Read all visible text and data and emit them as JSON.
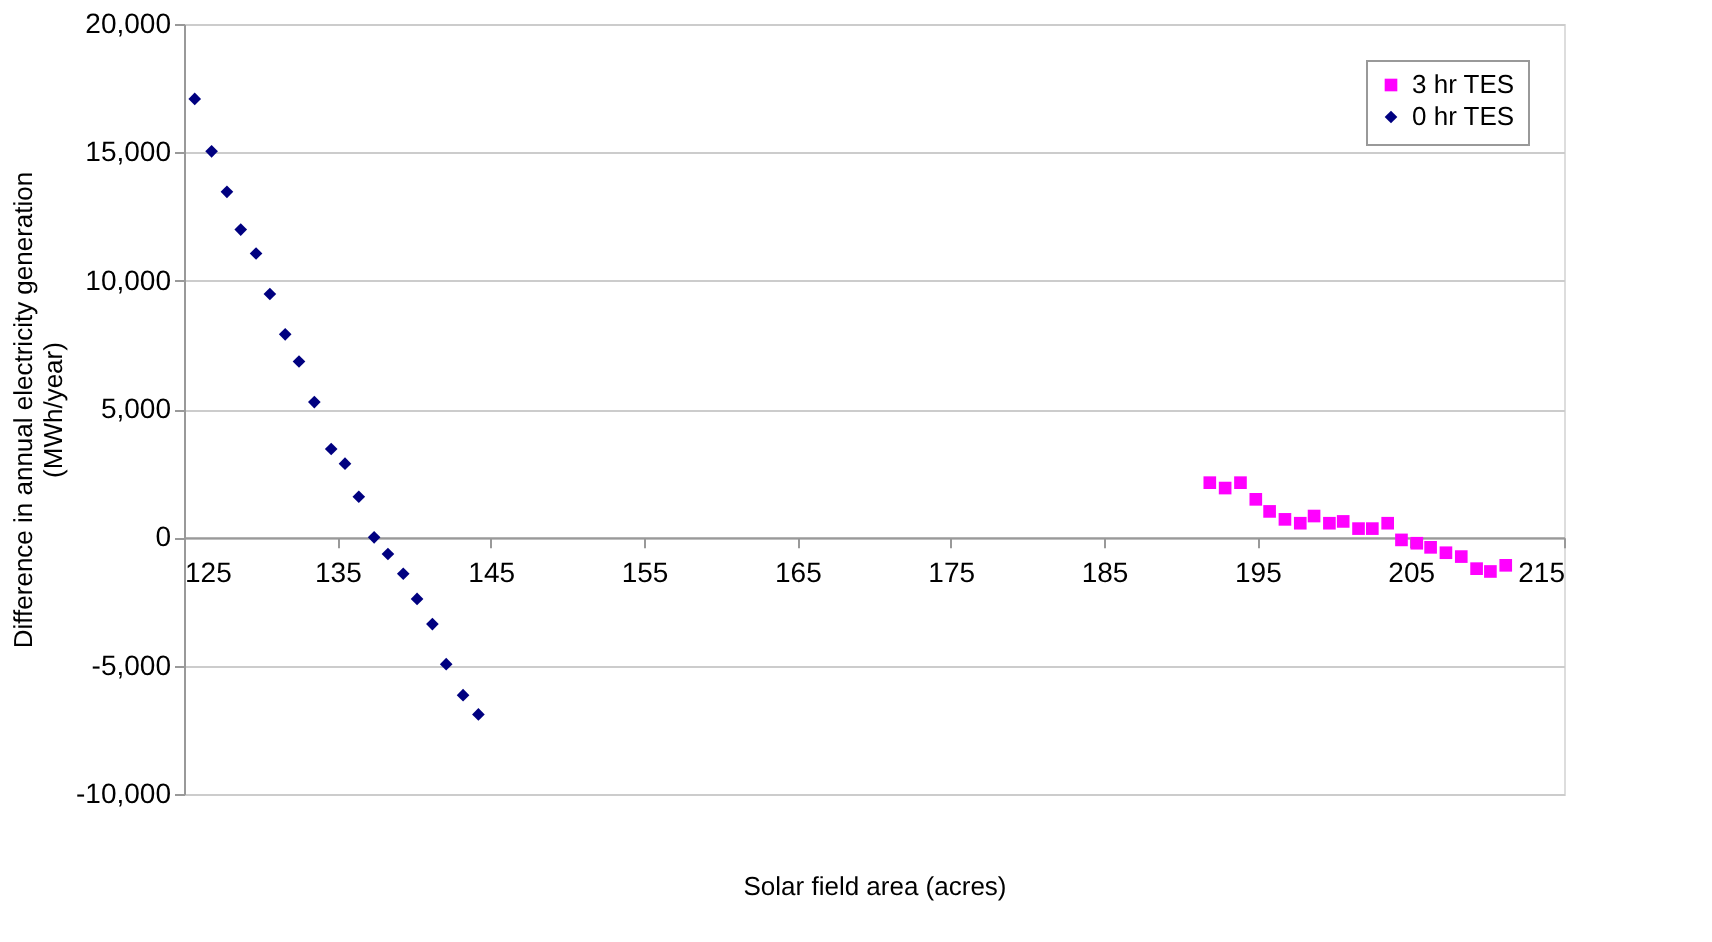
{
  "chart_data": {
    "type": "scatter",
    "xlabel": "Solar field area (acres)",
    "ylabel": "Difference in annual electricity generation (MWh/year)",
    "xlim": [
      125,
      215
    ],
    "xticks": [
      125,
      135,
      145,
      155,
      165,
      175,
      185,
      195,
      205,
      215
    ],
    "ylim": [
      -10000,
      20000
    ],
    "yticks": [
      {
        "value": -10000,
        "label": "-10,000"
      },
      {
        "value": -5000,
        "label": "-5,000"
      },
      0,
      {
        "value": 5000,
        "label": "5,000"
      },
      {
        "value": 10000,
        "label": "10,000"
      },
      {
        "value": 15000,
        "label": "15,000"
      },
      {
        "value": 20000,
        "label": "20,000"
      }
    ],
    "grid": "y",
    "legend": "top right",
    "series": [
      {
        "name": "3 hr TES",
        "color": "#ff00ff",
        "marker": "square",
        "x": [
          191.9,
          192.9,
          193.9,
          194.9,
          195.8,
          196.8,
          197.8,
          198.7,
          199.7,
          200.6,
          201.6,
          202.5,
          203.5,
          204.4,
          205.4,
          206.3,
          207.3,
          208.3,
          209.3,
          210.2,
          211.2
        ],
        "values": [
          2130,
          1920,
          2130,
          1480,
          1010,
          700,
          550,
          830,
          550,
          620,
          340,
          340,
          550,
          -100,
          -230,
          -390,
          -600,
          -750,
          -1220,
          -1330,
          -1090
        ]
      },
      {
        "name": "0 hr TES",
        "color": "#000080",
        "marker": "diamond",
        "x": [
          125.7,
          126.8,
          127.8,
          128.7,
          129.7,
          130.6,
          131.6,
          132.5,
          133.5,
          134.6,
          135.5,
          136.4,
          137.4,
          138.3,
          139.3,
          140.2,
          141.2,
          142.1,
          143.2,
          144.2
        ],
        "values": [
          17080,
          15040,
          13460,
          11990,
          11060,
          9480,
          7910,
          6850,
          5270,
          3440,
          2870,
          1580,
          0,
          -650,
          -1420,
          -2400,
          -3380,
          -4940,
          -6150,
          -6900
        ]
      }
    ]
  }
}
